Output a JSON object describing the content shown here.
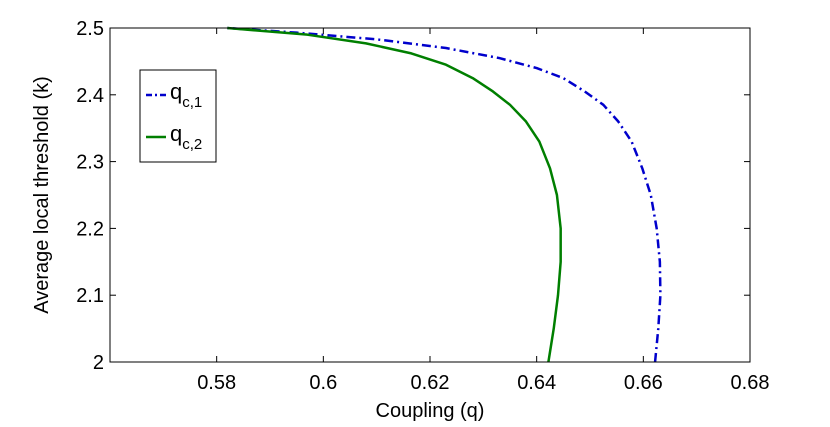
{
  "chart_data": {
    "type": "line",
    "title": "",
    "xlabel": "Coupling (q)",
    "ylabel": "Average local threshold (k)",
    "xlim": [
      0.56,
      0.68
    ],
    "ylim": [
      2.0,
      2.5
    ],
    "xticks": [
      "0.58",
      "0.6",
      "0.62",
      "0.64",
      "0.66",
      "0.68"
    ],
    "yticks": [
      "2",
      "2.1",
      "2.2",
      "2.3",
      "2.4",
      "2.5"
    ],
    "grid": false,
    "legend_position": "top-left",
    "series": [
      {
        "name": "q",
        "subscript": "c,1",
        "color": "#0000cc",
        "style": "dash-dot",
        "x": [
          0.6622,
          0.6628,
          0.6632,
          0.6631,
          0.6625,
          0.6614,
          0.6598,
          0.6578,
          0.6553,
          0.6525,
          0.649,
          0.645,
          0.64,
          0.633,
          0.623,
          0.61,
          0.595,
          0.582
        ],
        "y": [
          2.0,
          2.05,
          2.1,
          2.15,
          2.2,
          2.25,
          2.29,
          2.33,
          2.36,
          2.385,
          2.405,
          2.425,
          2.44,
          2.455,
          2.47,
          2.483,
          2.493,
          2.5
        ]
      },
      {
        "name": "q",
        "subscript": "c,2",
        "color": "#007f00",
        "style": "solid",
        "x": [
          0.6422,
          0.6432,
          0.644,
          0.6445,
          0.6445,
          0.6438,
          0.6425,
          0.6405,
          0.638,
          0.635,
          0.6318,
          0.628,
          0.623,
          0.6165,
          0.608,
          0.597,
          0.582
        ],
        "y": [
          2.0,
          2.05,
          2.1,
          2.15,
          2.2,
          2.25,
          2.29,
          2.33,
          2.36,
          2.385,
          2.405,
          2.425,
          2.445,
          2.462,
          2.477,
          2.49,
          2.5
        ]
      }
    ]
  }
}
